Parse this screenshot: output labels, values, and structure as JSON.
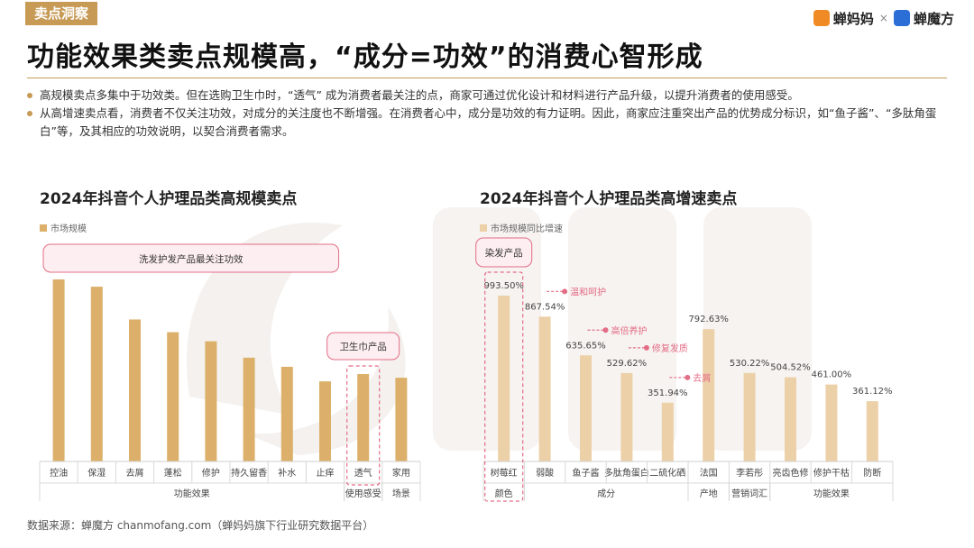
{
  "header": {
    "tag": "卖点洞察",
    "title": "功能效果类卖点规模高，“成分=功效”的消费心智形成",
    "logo_left": "蝉妈妈",
    "logo_sep": "×",
    "logo_right": "蝉魔方"
  },
  "bullets": [
    "高规模卖点多集中于功效类。但在选购卫生巾时，“透气” 成为消费者最关注的点，商家可通过优化设计和材料进行产品升级，以提升消费者的使用感受。",
    "从高增速卖点看，消费者不仅关注功效，对成分的关注度也不断增强。在消费者心中，成分是功效的有力证明。因此，商家应注重突出产品的优势成分标识，如“鱼子酱”、“多肽角蛋白”等，及其相应的功效说明，以契合消费者需求。"
  ],
  "footer": "数据来源：蝉魔方 chanmofang.com（蝉妈妈旗下行业研究数据平台）",
  "colors": {
    "accent": "#c79a55",
    "bar_left": "#dcb06a",
    "bar_right": "#ecd0a8",
    "callout": "#e46d86"
  },
  "chart_data": [
    {
      "type": "bar",
      "title": "2024年抖音个人护理品类高规模卖点",
      "legend": "市场规模",
      "categories": [
        "控油",
        "保湿",
        "去屑",
        "蓬松",
        "修护",
        "持久留香",
        "补水",
        "止痒",
        "透气",
        "家用"
      ],
      "values": [
        100,
        96,
        78,
        71,
        66,
        57,
        52,
        44,
        48,
        46
      ],
      "groups": [
        {
          "label": "功能效果",
          "from": 0,
          "to": 7
        },
        {
          "label": "使用感受",
          "from": 8,
          "to": 8
        },
        {
          "label": "场景",
          "from": 9,
          "to": 9
        }
      ],
      "annotations": [
        {
          "text": "洗发护发产品最关注功效",
          "from": 0,
          "to": 7
        },
        {
          "text": "卫生巾产品",
          "from": 8,
          "to": 8
        }
      ]
    },
    {
      "type": "bar",
      "title": "2024年抖音个人护理品类高增速卖点",
      "legend": "市场规模同比增速",
      "categories": [
        "树莓红",
        "弱酸",
        "鱼子酱",
        "多肽角蛋白",
        "二硫化硒",
        "法国",
        "李若彤",
        "亮齿色修",
        "修护干枯",
        "防断"
      ],
      "values": [
        993.5,
        867.54,
        635.65,
        529.62,
        351.94,
        792.63,
        530.22,
        504.52,
        461.0,
        361.12
      ],
      "value_labels": [
        "993.50%",
        "867.54%",
        "635.65%",
        "529.62%",
        "351.94%",
        "792.63%",
        "530.22%",
        "504.52%",
        "461.00%",
        "361.12%"
      ],
      "groups": [
        {
          "label": "颜色",
          "from": 0,
          "to": 0
        },
        {
          "label": "成分",
          "from": 1,
          "to": 4
        },
        {
          "label": "产地",
          "from": 5,
          "to": 5
        },
        {
          "label": "营销词汇",
          "from": 6,
          "to": 6
        },
        {
          "label": "功能效果",
          "from": 7,
          "to": 9
        }
      ],
      "annotations": [
        {
          "text": "染发产品",
          "from": 0,
          "to": 0
        }
      ],
      "callouts": [
        {
          "index": 1,
          "text": "温和呵护"
        },
        {
          "index": 2,
          "text": "高倍养护"
        },
        {
          "index": 3,
          "text": "修复发质"
        },
        {
          "index": 4,
          "text": "去屑"
        }
      ]
    }
  ]
}
